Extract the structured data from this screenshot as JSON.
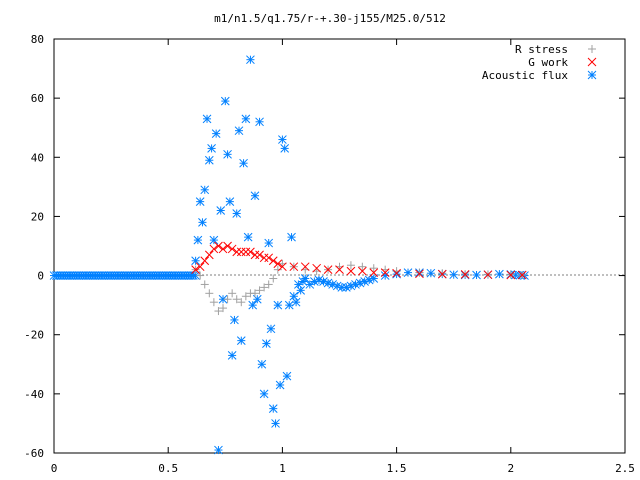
{
  "chart_data": {
    "type": "scatter",
    "title": "m1/n1.5/q1.75/r-+.30-j155/M25.0/512",
    "xlabel": "",
    "ylabel": "",
    "xlim": [
      0,
      2.5
    ],
    "ylim": [
      -60,
      80
    ],
    "xticks": [
      {
        "value": 0,
        "label": "0"
      },
      {
        "value": 0.5,
        "label": "0.5"
      },
      {
        "value": 1,
        "label": "1"
      },
      {
        "value": 1.5,
        "label": "1.5"
      },
      {
        "value": 2,
        "label": "2"
      },
      {
        "value": 2.5,
        "label": "2.5"
      }
    ],
    "yticks": [
      {
        "value": -60,
        "label": "-60"
      },
      {
        "value": -40,
        "label": "-40"
      },
      {
        "value": -20,
        "label": "-20"
      },
      {
        "value": 0,
        "label": "0"
      },
      {
        "value": 20,
        "label": "20"
      },
      {
        "value": 40,
        "label": "40"
      },
      {
        "value": 60,
        "label": "60"
      },
      {
        "value": 80,
        "label": "80"
      }
    ],
    "grid": false,
    "legend_position": "top-right",
    "series": [
      {
        "name": "R stress",
        "marker": "plus",
        "color": "#a0a0a0",
        "points": [
          [
            0.62,
            2
          ],
          [
            0.64,
            0
          ],
          [
            0.66,
            -3
          ],
          [
            0.68,
            -6
          ],
          [
            0.7,
            -9
          ],
          [
            0.72,
            -12
          ],
          [
            0.74,
            -11
          ],
          [
            0.76,
            -8
          ],
          [
            0.78,
            -6
          ],
          [
            0.8,
            -8
          ],
          [
            0.82,
            -9
          ],
          [
            0.84,
            -7
          ],
          [
            0.86,
            -6
          ],
          [
            0.88,
            -6
          ],
          [
            0.9,
            -5
          ],
          [
            0.92,
            -4
          ],
          [
            0.94,
            -3
          ],
          [
            0.96,
            -1
          ],
          [
            0.98,
            2
          ],
          [
            1.0,
            4
          ],
          [
            1.05,
            3
          ],
          [
            1.1,
            2
          ],
          [
            1.15,
            1.5
          ],
          [
            1.2,
            2
          ],
          [
            1.25,
            3
          ],
          [
            1.3,
            3.5
          ],
          [
            1.35,
            3
          ],
          [
            1.4,
            2.5
          ],
          [
            1.45,
            2
          ],
          [
            1.5,
            1.5
          ],
          [
            1.6,
            1
          ],
          [
            1.7,
            0.8
          ],
          [
            1.8,
            0.5
          ],
          [
            1.9,
            0.4
          ],
          [
            2.0,
            0.3
          ],
          [
            2.05,
            0.2
          ]
        ]
      },
      {
        "name": "G work",
        "marker": "cross",
        "color": "#ff0000",
        "points": [
          [
            0.62,
            2
          ],
          [
            0.64,
            3
          ],
          [
            0.66,
            5
          ],
          [
            0.68,
            7
          ],
          [
            0.7,
            9
          ],
          [
            0.72,
            10
          ],
          [
            0.74,
            9
          ],
          [
            0.76,
            10
          ],
          [
            0.78,
            9
          ],
          [
            0.8,
            8
          ],
          [
            0.82,
            8
          ],
          [
            0.84,
            8
          ],
          [
            0.86,
            8
          ],
          [
            0.88,
            7
          ],
          [
            0.9,
            7
          ],
          [
            0.92,
            6
          ],
          [
            0.94,
            6
          ],
          [
            0.96,
            5
          ],
          [
            0.98,
            4
          ],
          [
            1.0,
            3
          ],
          [
            1.05,
            3
          ],
          [
            1.1,
            3
          ],
          [
            1.15,
            2.5
          ],
          [
            1.2,
            2
          ],
          [
            1.25,
            2
          ],
          [
            1.3,
            1.5
          ],
          [
            1.35,
            1.5
          ],
          [
            1.4,
            1
          ],
          [
            1.45,
            1
          ],
          [
            1.5,
            0.8
          ],
          [
            1.6,
            0.6
          ],
          [
            1.7,
            0.5
          ],
          [
            1.8,
            0.4
          ],
          [
            1.9,
            0.3
          ],
          [
            2.0,
            0.2
          ],
          [
            2.05,
            0.2
          ]
        ]
      },
      {
        "name": "Acoustic flux",
        "marker": "star",
        "color": "#0080ff",
        "points": [
          [
            0.62,
            5
          ],
          [
            0.63,
            12
          ],
          [
            0.64,
            25
          ],
          [
            0.65,
            18
          ],
          [
            0.66,
            29
          ],
          [
            0.67,
            53
          ],
          [
            0.68,
            39
          ],
          [
            0.69,
            43
          ],
          [
            0.7,
            12
          ],
          [
            0.71,
            48
          ],
          [
            0.72,
            -59
          ],
          [
            0.73,
            22
          ],
          [
            0.74,
            -8
          ],
          [
            0.75,
            59
          ],
          [
            0.76,
            41
          ],
          [
            0.77,
            25
          ],
          [
            0.78,
            -27
          ],
          [
            0.79,
            -15
          ],
          [
            0.8,
            21
          ],
          [
            0.81,
            49
          ],
          [
            0.82,
            -22
          ],
          [
            0.83,
            38
          ],
          [
            0.84,
            53
          ],
          [
            0.85,
            13
          ],
          [
            0.86,
            73
          ],
          [
            0.87,
            -10
          ],
          [
            0.88,
            27
          ],
          [
            0.89,
            -8
          ],
          [
            0.9,
            52
          ],
          [
            0.91,
            -30
          ],
          [
            0.92,
            -40
          ],
          [
            0.93,
            -23
          ],
          [
            0.94,
            11
          ],
          [
            0.95,
            -18
          ],
          [
            0.96,
            -45
          ],
          [
            0.97,
            -50
          ],
          [
            0.98,
            -10
          ],
          [
            0.99,
            -37
          ],
          [
            1.0,
            46
          ],
          [
            1.01,
            43
          ],
          [
            1.02,
            -34
          ],
          [
            1.03,
            -10
          ],
          [
            1.04,
            13
          ],
          [
            1.05,
            -7
          ],
          [
            1.06,
            -9
          ],
          [
            1.07,
            -3
          ],
          [
            1.08,
            -5
          ],
          [
            1.09,
            -2
          ],
          [
            1.1,
            -1
          ],
          [
            1.12,
            -3
          ],
          [
            1.14,
            -2
          ],
          [
            1.16,
            -1.5
          ],
          [
            1.18,
            -2
          ],
          [
            1.2,
            -2.5
          ],
          [
            1.22,
            -3
          ],
          [
            1.24,
            -3.5
          ],
          [
            1.26,
            -4
          ],
          [
            1.28,
            -4
          ],
          [
            1.3,
            -3.5
          ],
          [
            1.32,
            -3
          ],
          [
            1.34,
            -2.5
          ],
          [
            1.36,
            -2
          ],
          [
            1.38,
            -1.5
          ],
          [
            1.4,
            -1
          ],
          [
            1.45,
            0
          ],
          [
            1.5,
            0.5
          ],
          [
            1.55,
            1
          ],
          [
            1.6,
            1
          ],
          [
            1.65,
            0.8
          ],
          [
            1.7,
            0.5
          ],
          [
            1.75,
            0.3
          ],
          [
            1.8,
            0.2
          ],
          [
            1.85,
            0.2
          ],
          [
            1.9,
            0.3
          ],
          [
            1.95,
            0.5
          ],
          [
            2.0,
            0.4
          ],
          [
            2.02,
            0.2
          ],
          [
            2.04,
            0.1
          ],
          [
            2.06,
            0
          ]
        ],
        "baseline_start": 0,
        "baseline_end": 0.62
      }
    ]
  }
}
